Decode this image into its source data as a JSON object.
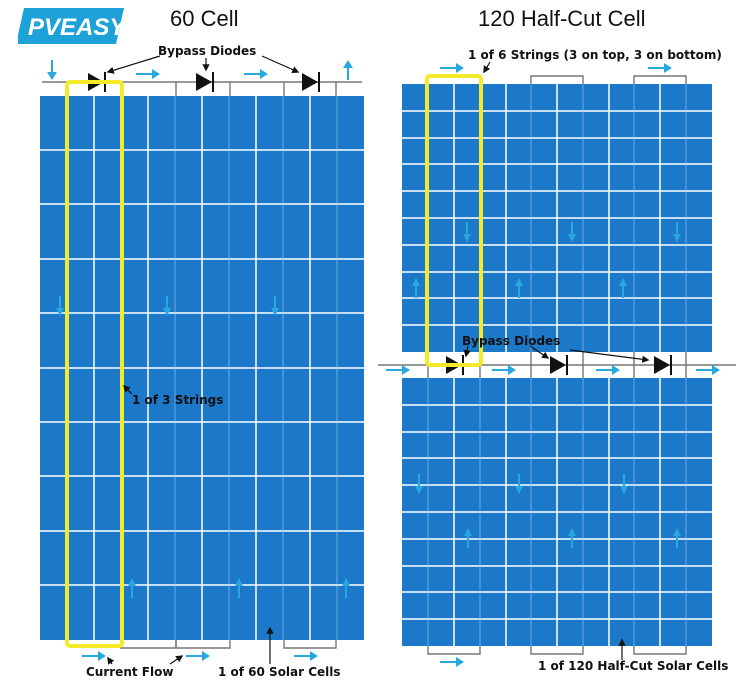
{
  "brand": {
    "logo_text": "PVEASY.",
    "logo_color": "#1ea1d8"
  },
  "titles": {
    "left": "60 Cell",
    "right": "120 Half-Cut Cell"
  },
  "labels": {
    "bypass_diodes_left": "Bypass Diodes",
    "strings_left": "1 of 3 Strings",
    "current_flow": "Current Flow",
    "solar_cells_left": "1 of 60 Solar Cells",
    "strings_right": "1 of 6 Strings (3 on top, 3 on bottom)",
    "bypass_diodes_right": "Bypass Diodes",
    "solar_cells_right": "1 of 120 Half-Cut Solar Cells"
  },
  "colors": {
    "panel_blue": "#1c78c9",
    "cell_line": "#ffffff",
    "arrow": "#29a8e0",
    "highlight": "#f4ea2a",
    "wire": "#777777",
    "diode": "#111111"
  },
  "panels": {
    "left": {
      "columns": 6,
      "rows": 10,
      "cells": 60
    },
    "right": {
      "columns": 6,
      "rows_top": 10,
      "rows_bottom": 10,
      "cells": 120
    }
  }
}
